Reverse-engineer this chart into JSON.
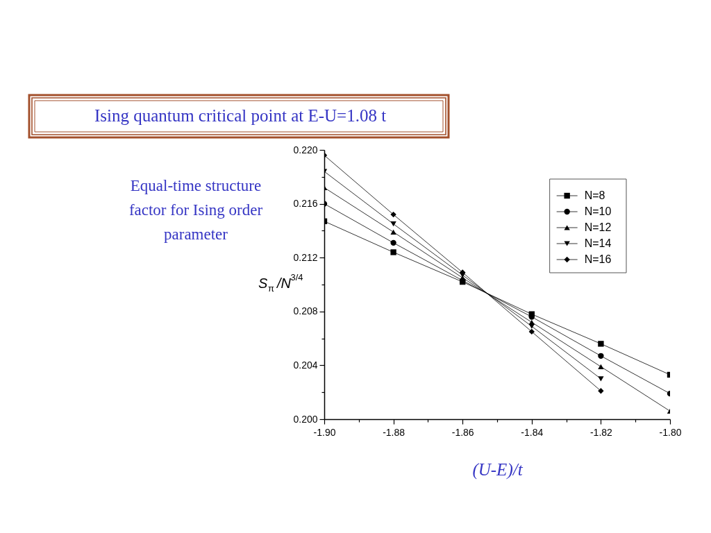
{
  "chart_data": {
    "type": "line",
    "title": "Ising quantum critical point at E-U=1.08 t",
    "subtitle": "Equal-time structure factor for Ising order parameter",
    "xlabel": "(U-E)/t",
    "ylabel": "S$_{π}$ /N$^{3/4}$",
    "x": [
      -1.9,
      -1.88,
      -1.86,
      -1.84,
      -1.82,
      -1.8
    ],
    "series": [
      {
        "name": "N=8",
        "color": "#000000",
        "marker": "square",
        "values": [
          0.2147,
          0.2124,
          0.2102,
          0.2078,
          0.2056,
          0.2033
        ]
      },
      {
        "name": "N=10",
        "color": "#000000",
        "marker": "circle",
        "values": [
          0.216,
          0.2131,
          0.2103,
          0.2076,
          0.2047,
          0.2019
        ]
      },
      {
        "name": "N=12",
        "color": "#000000",
        "marker": "triangle",
        "values": [
          0.2172,
          0.2139,
          0.2105,
          0.2072,
          0.2039,
          0.2006
        ]
      },
      {
        "name": "N=14",
        "color": "#000000",
        "marker": "triangle-down",
        "values": [
          0.2184,
          0.2145,
          0.2107,
          0.2069,
          0.203,
          null
        ]
      },
      {
        "name": "N=16",
        "color": "#000000",
        "marker": "diamond",
        "values": [
          0.2196,
          0.2152,
          0.2109,
          0.2065,
          0.2021,
          null
        ]
      }
    ],
    "xlim": [
      -1.9,
      -1.8
    ],
    "ylim": [
      0.2,
      0.22
    ],
    "xticks": [
      {
        "value": -1.9,
        "label": "-1.90"
      },
      {
        "value": -1.89,
        "label": null
      },
      {
        "value": -1.88,
        "label": "-1.88"
      },
      {
        "value": -1.87,
        "label": null
      },
      {
        "value": -1.86,
        "label": "-1.86"
      },
      {
        "value": -1.85,
        "label": null
      },
      {
        "value": -1.84,
        "label": "-1.84"
      },
      {
        "value": -1.83,
        "label": null
      },
      {
        "value": -1.82,
        "label": "-1.82"
      },
      {
        "value": -1.81,
        "label": null
      },
      {
        "value": -1.8,
        "label": "-1.80"
      }
    ],
    "yticks": [
      {
        "value": 0.2,
        "label": "0.200"
      },
      {
        "value": 0.202,
        "label": null
      },
      {
        "value": 0.204,
        "label": "0.204"
      },
      {
        "value": 0.206,
        "label": null
      },
      {
        "value": 0.208,
        "label": "0.208"
      },
      {
        "value": 0.21,
        "label": null
      },
      {
        "value": 0.212,
        "label": "0.212"
      },
      {
        "value": 0.214,
        "label": null
      },
      {
        "value": 0.216,
        "label": "0.216"
      },
      {
        "value": 0.218,
        "label": null
      },
      {
        "value": 0.22,
        "label": "0.220"
      }
    ],
    "grid": false,
    "legend": "top right",
    "line_style": "solid"
  }
}
